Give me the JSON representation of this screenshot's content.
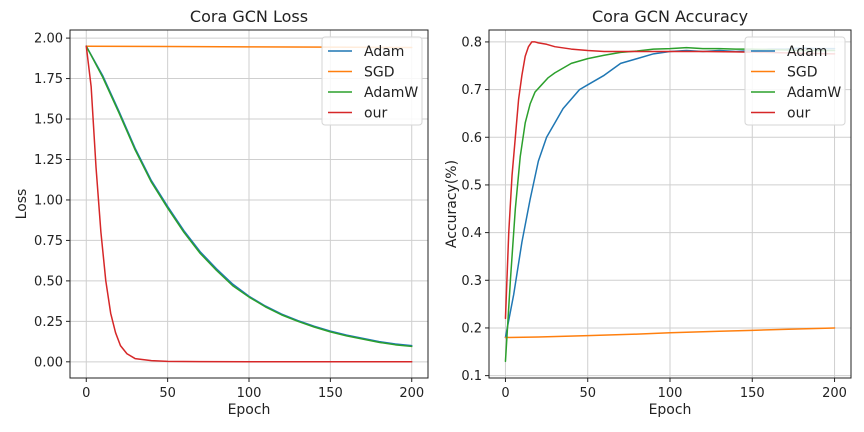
{
  "chart_data": [
    {
      "type": "line",
      "title": "Cora GCN Loss",
      "xlabel": "Epoch",
      "ylabel": "Loss",
      "xlim": [
        -10,
        210
      ],
      "ylim": [
        -0.1,
        2.05
      ],
      "xticks": [
        0,
        50,
        100,
        150,
        200
      ],
      "yticks": [
        0.0,
        0.25,
        0.5,
        0.75,
        1.0,
        1.25,
        1.5,
        1.75,
        2.0
      ],
      "ytick_labels": [
        "0.00",
        "0.25",
        "0.50",
        "0.75",
        "1.00",
        "1.25",
        "1.50",
        "1.75",
        "2.00"
      ],
      "grid": true,
      "legend_position": "top-right",
      "series": [
        {
          "name": "Adam",
          "color": "#1f77b4",
          "x": [
            0,
            10,
            20,
            30,
            40,
            50,
            60,
            70,
            80,
            90,
            100,
            110,
            120,
            130,
            140,
            150,
            160,
            170,
            180,
            190,
            200
          ],
          "values": [
            1.95,
            1.77,
            1.55,
            1.32,
            1.12,
            0.96,
            0.81,
            0.68,
            0.575,
            0.48,
            0.405,
            0.345,
            0.295,
            0.255,
            0.22,
            0.19,
            0.165,
            0.145,
            0.125,
            0.11,
            0.1
          ]
        },
        {
          "name": "SGD",
          "color": "#ff7f0e",
          "x": [
            0,
            50,
            100,
            150,
            200
          ],
          "values": [
            1.95,
            1.948,
            1.946,
            1.944,
            1.942
          ]
        },
        {
          "name": "AdamW",
          "color": "#2ca02c",
          "x": [
            0,
            10,
            20,
            30,
            40,
            50,
            60,
            70,
            80,
            90,
            100,
            110,
            120,
            130,
            140,
            150,
            160,
            170,
            180,
            190,
            200
          ],
          "values": [
            1.95,
            1.76,
            1.54,
            1.31,
            1.11,
            0.95,
            0.8,
            0.67,
            0.565,
            0.47,
            0.4,
            0.34,
            0.29,
            0.25,
            0.215,
            0.185,
            0.16,
            0.14,
            0.12,
            0.105,
            0.095
          ]
        },
        {
          "name": "our",
          "color": "#d62728",
          "x": [
            0,
            3,
            6,
            9,
            12,
            15,
            18,
            21,
            25,
            30,
            40,
            50,
            70,
            100,
            150,
            200
          ],
          "values": [
            1.95,
            1.7,
            1.2,
            0.8,
            0.5,
            0.3,
            0.18,
            0.1,
            0.05,
            0.02,
            0.007,
            0.003,
            0.001,
            0.0,
            0.0,
            0.0
          ]
        }
      ]
    },
    {
      "type": "line",
      "title": "Cora GCN Accuracy",
      "xlabel": "Epoch",
      "ylabel": "Accuracy(%)",
      "xlim": [
        -10,
        210
      ],
      "ylim": [
        0.095,
        0.825
      ],
      "xticks": [
        0,
        50,
        100,
        150,
        200
      ],
      "yticks": [
        0.1,
        0.2,
        0.3,
        0.4,
        0.5,
        0.6,
        0.7,
        0.8
      ],
      "ytick_labels": [
        "0.1",
        "0.2",
        "0.3",
        "0.4",
        "0.5",
        "0.6",
        "0.7",
        "0.8"
      ],
      "grid": true,
      "legend_position": "top-right",
      "series": [
        {
          "name": "Adam",
          "color": "#1f77b4",
          "x": [
            0,
            5,
            10,
            15,
            20,
            25,
            30,
            35,
            40,
            45,
            50,
            60,
            70,
            80,
            90,
            100,
            110,
            120,
            130,
            140,
            150,
            160,
            170,
            180,
            190,
            200
          ],
          "values": [
            0.18,
            0.27,
            0.38,
            0.47,
            0.55,
            0.6,
            0.63,
            0.66,
            0.68,
            0.7,
            0.71,
            0.73,
            0.755,
            0.765,
            0.775,
            0.78,
            0.782,
            0.78,
            0.782,
            0.78,
            0.782,
            0.785,
            0.785,
            0.787,
            0.786,
            0.786
          ]
        },
        {
          "name": "SGD",
          "color": "#ff7f0e",
          "x": [
            0,
            20,
            50,
            80,
            100,
            130,
            150,
            180,
            200
          ],
          "values": [
            0.18,
            0.181,
            0.184,
            0.187,
            0.19,
            0.193,
            0.195,
            0.198,
            0.2
          ]
        },
        {
          "name": "AdamW",
          "color": "#2ca02c",
          "x": [
            0,
            3,
            6,
            9,
            12,
            15,
            18,
            22,
            26,
            30,
            35,
            40,
            50,
            60,
            70,
            80,
            90,
            100,
            110,
            120,
            130,
            140,
            150,
            160,
            170,
            180,
            190,
            200
          ],
          "values": [
            0.13,
            0.3,
            0.45,
            0.56,
            0.63,
            0.67,
            0.695,
            0.71,
            0.725,
            0.735,
            0.745,
            0.755,
            0.765,
            0.772,
            0.778,
            0.781,
            0.785,
            0.786,
            0.788,
            0.786,
            0.786,
            0.785,
            0.785,
            0.784,
            0.783,
            0.782,
            0.782,
            0.782
          ]
        },
        {
          "name": "our",
          "color": "#d62728",
          "x": [
            0,
            2,
            4,
            6,
            8,
            10,
            12,
            14,
            16,
            18,
            20,
            25,
            30,
            40,
            50,
            60,
            70,
            80,
            100,
            120,
            140,
            160,
            180,
            200
          ],
          "values": [
            0.22,
            0.4,
            0.52,
            0.6,
            0.68,
            0.73,
            0.77,
            0.79,
            0.8,
            0.8,
            0.798,
            0.795,
            0.79,
            0.785,
            0.782,
            0.78,
            0.78,
            0.78,
            0.78,
            0.78,
            0.779,
            0.778,
            0.776,
            0.775
          ]
        }
      ]
    }
  ]
}
